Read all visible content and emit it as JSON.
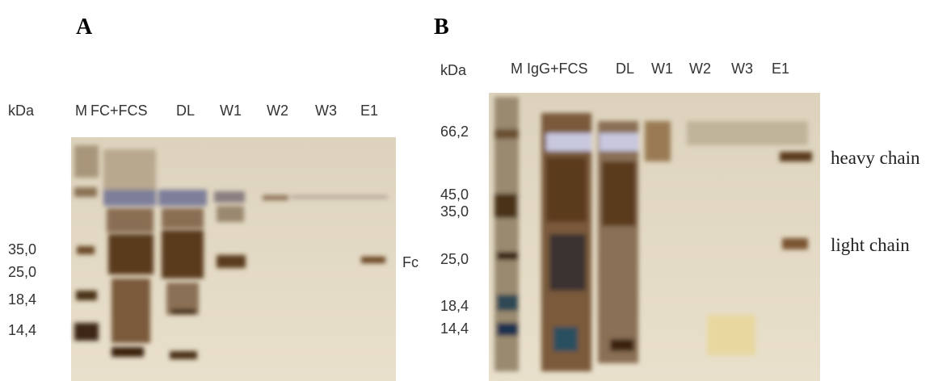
{
  "panels": [
    {
      "label": "A",
      "unit_label": "kDa",
      "lanes": [
        "M",
        "FC+FCS",
        "DL",
        "W1",
        "W2",
        "W3",
        "E1"
      ],
      "markers": [
        "35,0",
        "25,0",
        "18,4",
        "14,4"
      ],
      "annotations": [
        "Fc"
      ]
    },
    {
      "label": "B",
      "unit_label": "kDa",
      "lanes": [
        "M",
        "IgG+FCS",
        "DL",
        "W1",
        "W2",
        "W3",
        "E1"
      ],
      "markers": [
        "66,2",
        "45,0",
        "35,0",
        "25,0",
        "18,4",
        "14,4"
      ],
      "annotations": [
        "heavy chain",
        "light chain"
      ]
    }
  ]
}
